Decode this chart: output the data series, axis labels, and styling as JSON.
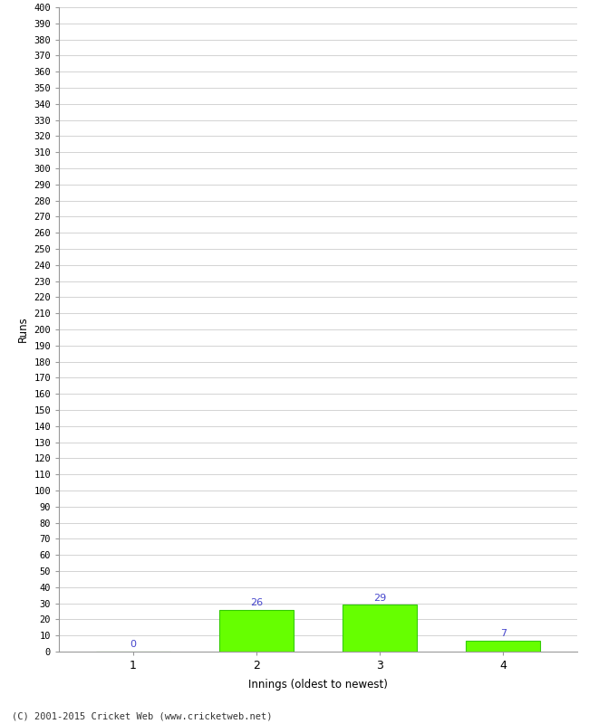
{
  "xlabel": "Innings (oldest to newest)",
  "ylabel": "Runs",
  "categories": [
    1,
    2,
    3,
    4
  ],
  "values": [
    0,
    26,
    29,
    7
  ],
  "bar_color": "#66ff00",
  "bar_edge_color": "#33cc00",
  "annotation_color": "#4444cc",
  "ylim": [
    0,
    400
  ],
  "ytick_step": 10,
  "background_color": "#ffffff",
  "grid_color": "#cccccc",
  "footer": "(C) 2001-2015 Cricket Web (www.cricketweb.net)"
}
